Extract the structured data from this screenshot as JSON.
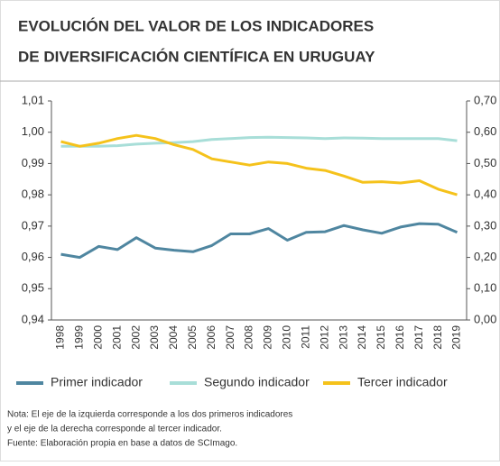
{
  "title_lines": [
    "EVOLUCIÓN DEL VALOR DE LOS INDICADORES",
    "DE DIVERSIFICACIÓN CIENTÍFICA EN URUGUAY"
  ],
  "chart_data": {
    "type": "line",
    "categories": [
      "1998",
      "1999",
      "2000",
      "2001",
      "2002",
      "2003",
      "2004",
      "2005",
      "2006",
      "2007",
      "2008",
      "2009",
      "2010",
      "2011",
      "2012",
      "2013",
      "2014",
      "2015",
      "2016",
      "2017",
      "2018",
      "2019"
    ],
    "series": [
      {
        "name": "Primer indicador",
        "color": "#4f86a0",
        "values": [
          0.961,
          0.96,
          0.9635,
          0.9625,
          0.9663,
          0.963,
          0.9623,
          0.9618,
          0.9638,
          0.9675,
          0.9675,
          0.9692,
          0.9655,
          0.968,
          0.9682,
          0.9702,
          0.9688,
          0.9677,
          0.9697,
          0.9708,
          0.9706,
          0.968
        ]
      },
      {
        "name": "Segundo indicador",
        "color": "#a8ded8",
        "values": [
          0.9955,
          0.9955,
          0.9955,
          0.9957,
          0.9962,
          0.9965,
          0.9967,
          0.997,
          0.9977,
          0.998,
          0.9983,
          0.9984,
          0.9983,
          0.9982,
          0.998,
          0.9982,
          0.9981,
          0.998,
          0.998,
          0.998,
          0.998,
          0.9973
        ]
      },
      {
        "name": "Tercer indicador",
        "color": "#f5c21b",
        "axis": "y2",
        "values": [
          0.57,
          0.555,
          0.565,
          0.58,
          0.59,
          0.58,
          0.56,
          0.545,
          0.515,
          0.505,
          0.495,
          0.505,
          0.5,
          0.485,
          0.478,
          0.46,
          0.44,
          0.442,
          0.438,
          0.445,
          0.418,
          0.4
        ]
      }
    ],
    "ylim": [
      0.94,
      1.01
    ],
    "yticks": [
      {
        "value": 0.94,
        "label": "0,94"
      },
      {
        "value": 0.95,
        "label": "0,95"
      },
      {
        "value": 0.96,
        "label": "0,96"
      },
      {
        "value": 0.97,
        "label": "0,97"
      },
      {
        "value": 0.98,
        "label": "0,98"
      },
      {
        "value": 0.99,
        "label": "0,99"
      },
      {
        "value": 1.0,
        "label": "1,00"
      },
      {
        "value": 1.01,
        "label": "1,01"
      }
    ],
    "y2lim": [
      0,
      0.7
    ],
    "y2ticks": [
      {
        "value": 0,
        "label": "0,00"
      },
      {
        "value": 0.1,
        "label": "0,10"
      },
      {
        "value": 0.2,
        "label": "0,20"
      },
      {
        "value": 0.3,
        "label": "0,30"
      },
      {
        "value": 0.4,
        "label": "0,40"
      },
      {
        "value": 0.5,
        "label": "0,50"
      },
      {
        "value": 0.6,
        "label": "0,60"
      },
      {
        "value": 0.7,
        "label": "0,70"
      }
    ]
  },
  "notes": [
    "Nota: El eje de la izquierda corresponde a los dos primeros indicadores",
    "y el eje de la derecha corresponde al tercer indicador.",
    "Fuente: Elaboración propia en base a datos de SCImago."
  ]
}
